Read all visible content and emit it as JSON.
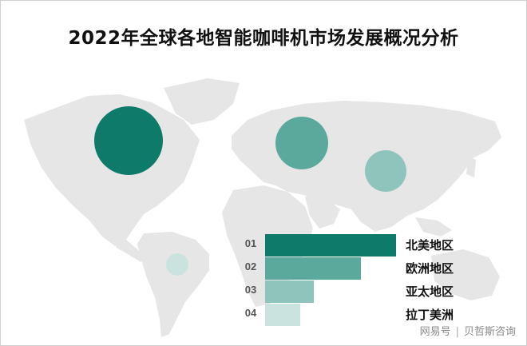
{
  "title": "2022年全球各地智能咖啡机市场发展概况分析",
  "colors": {
    "rank1": "#0e7a6a",
    "rank2": "#5aa99c",
    "rank3": "#8fc4bd",
    "rank4": "#cbe3df",
    "land": "#e6e6e6"
  },
  "regions": [
    {
      "rank": "01",
      "label": "北美地区",
      "level": 1.0
    },
    {
      "rank": "02",
      "label": "欧洲地区",
      "level": 0.73
    },
    {
      "rank": "03",
      "label": "亚太地区",
      "level": 0.37
    },
    {
      "rank": "04",
      "label": "拉丁美洲",
      "level": 0.27
    }
  ],
  "watermark": {
    "left": "网易号",
    "right": "贝哲斯咨询"
  }
}
